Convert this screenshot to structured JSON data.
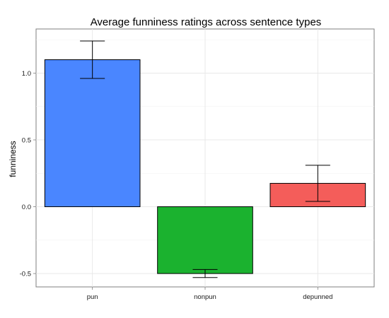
{
  "chart_data": {
    "type": "bar",
    "title": "Average funniness ratings across sentence types",
    "xlabel": "",
    "ylabel": "funniness",
    "categories": [
      "pun",
      "nonpun",
      "depunned"
    ],
    "values": [
      1.1,
      -0.5,
      0.175
    ],
    "error_low": [
      0.96,
      -0.53,
      0.04
    ],
    "error_high": [
      1.24,
      -0.47,
      0.31
    ],
    "colors": [
      "#4a86ff",
      "#1bb22f",
      "#f45d5a"
    ],
    "ylim": [
      -0.6,
      1.33
    ],
    "yticks": [
      -0.5,
      0.0,
      0.5,
      1.0
    ],
    "ytick_labels": [
      "-0.5",
      "0.0",
      "0.5",
      "1.0"
    ],
    "grid": true,
    "legend": "none"
  }
}
